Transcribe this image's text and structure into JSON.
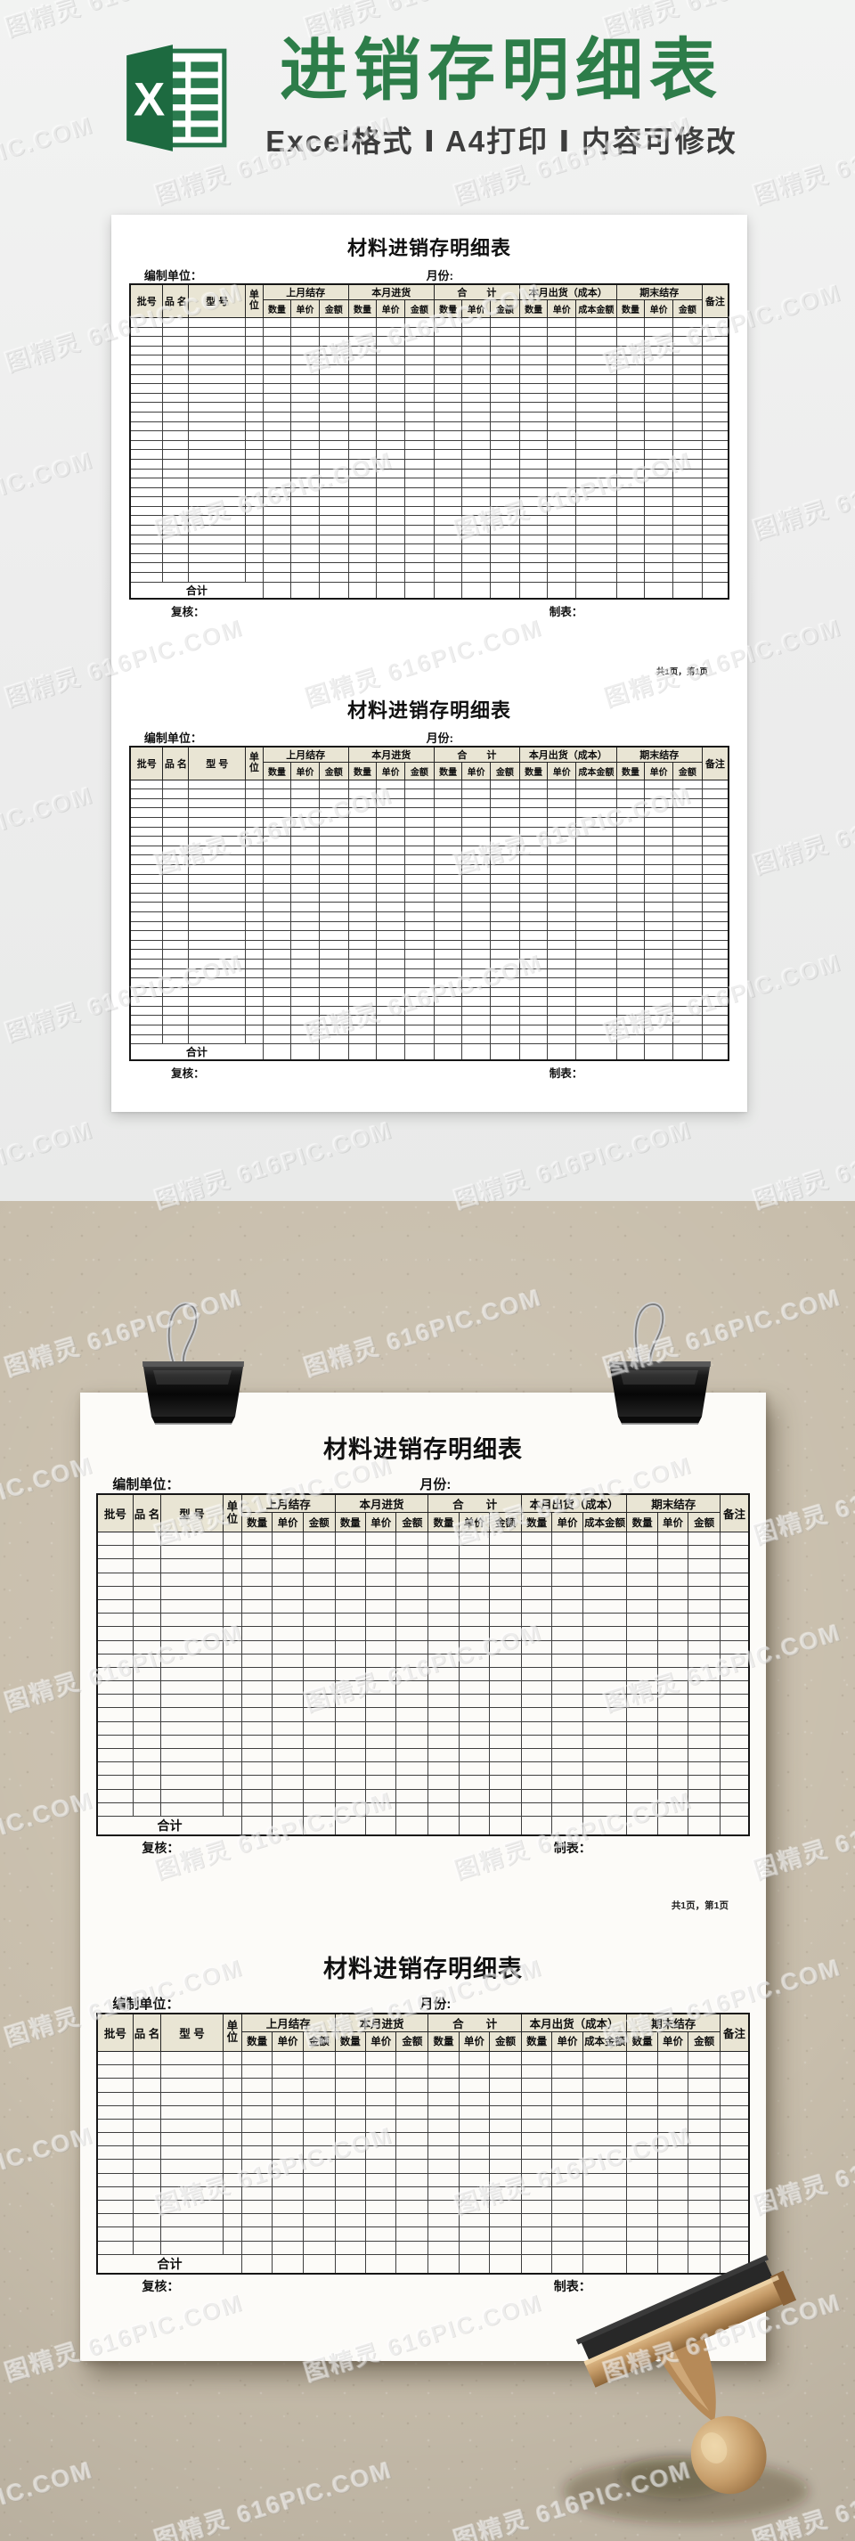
{
  "banner": {
    "title": "进销存明细表",
    "subtitle": "Excel格式 Ⅰ A4打印 Ⅰ 内容可修改",
    "icon_letter": "X",
    "title_color": "#2d7d49"
  },
  "sheet": {
    "title": "材料进销存明细表",
    "prepared_by_label": "编制单位：",
    "month_label": "月份:",
    "columns": {
      "batch": "批号",
      "name": "品 名",
      "model": "型 号",
      "unit": "单位",
      "remark": "备注"
    },
    "groups": [
      "上月结存",
      "本月进货",
      "合　　计",
      "本月出货（成本）",
      "期末结存"
    ],
    "sub_labels": [
      "数量",
      "单价",
      "金额",
      "数量",
      "单价",
      "金额",
      "数量",
      "单价",
      "金额",
      "数量",
      "单价",
      "成本金额",
      "数量",
      "单价",
      "金额"
    ],
    "total_label": "合计",
    "reviewer_label": "复核：",
    "tabulator_label": "制表：",
    "page_note": "共1页，第1页"
  },
  "watermark": {
    "text": "图精灵 616PIC.COM"
  },
  "colors": {
    "accent_green": "#2d7d49",
    "excel_green": "#1d6a40",
    "header_fill": "#e9e5d4",
    "promo_bg": "#ededed",
    "photo_bg": "#c8beac",
    "paper": "#ffffff",
    "wood": "#c49a67",
    "rubber": "#282828"
  }
}
